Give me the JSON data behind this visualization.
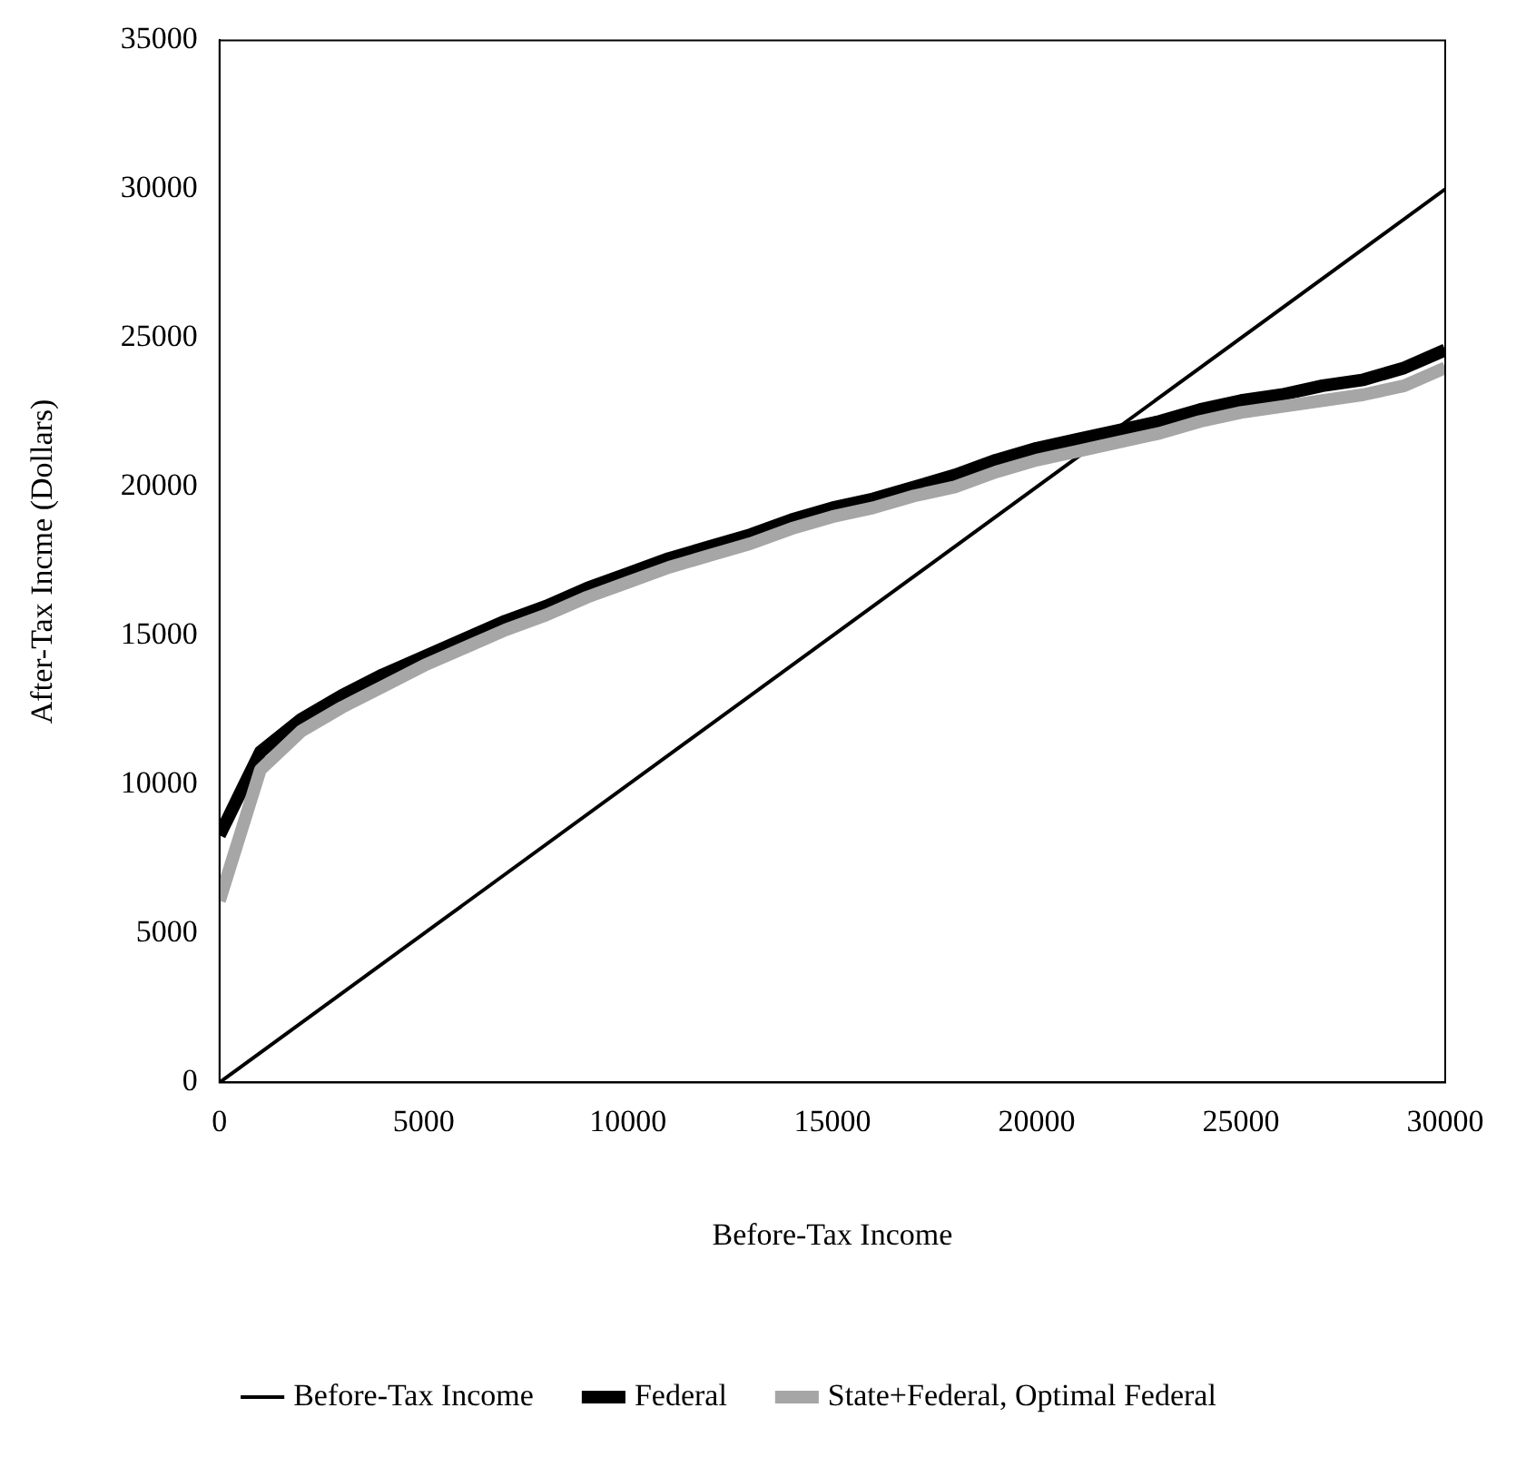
{
  "chart_data": {
    "type": "line",
    "xlabel": "Before-Tax Income",
    "ylabel": "After-Tax Incme (Dollars)",
    "xlim": [
      0,
      30000
    ],
    "xticks": [
      0,
      5000,
      10000,
      15000,
      20000,
      25000,
      30000
    ],
    "ylim": [
      0,
      35000
    ],
    "yticks": [
      0,
      5000,
      10000,
      15000,
      20000,
      25000,
      30000,
      35000
    ],
    "grid": false,
    "legend": "bottom",
    "marker": "none",
    "line_style": "solid",
    "series": [
      {
        "name": "Before-Tax Income",
        "color": "#000000",
        "x": [
          0,
          30000
        ],
        "values": [
          0,
          30000
        ]
      },
      {
        "name": "Federal",
        "color": "#000000",
        "x": [
          0,
          1000,
          2000,
          3000,
          4000,
          5000,
          6000,
          7000,
          8000,
          9000,
          10000,
          11000,
          12000,
          13000,
          14000,
          15000,
          16000,
          17000,
          18000,
          19000,
          20000,
          21000,
          22000,
          23000,
          24000,
          25000,
          26000,
          27000,
          28000,
          29000,
          30000
        ],
        "values": [
          8300,
          11100,
          12200,
          13000,
          13700,
          14300,
          14900,
          15500,
          16000,
          16600,
          17100,
          17600,
          18000,
          18400,
          18900,
          19300,
          19600,
          20000,
          20400,
          20900,
          21300,
          21600,
          21900,
          22200,
          22600,
          22900,
          23100,
          23400,
          23600,
          24000,
          24600
        ]
      },
      {
        "name": "State+Federal, Optimal Federal",
        "color": "#a6a6a6",
        "x": [
          0,
          1000,
          2000,
          3000,
          4000,
          5000,
          6000,
          7000,
          8000,
          9000,
          10000,
          11000,
          12000,
          13000,
          14000,
          15000,
          16000,
          17000,
          18000,
          19000,
          20000,
          21000,
          22000,
          23000,
          24000,
          25000,
          26000,
          27000,
          28000,
          29000,
          30000
        ],
        "values": [
          6100,
          10500,
          11800,
          12600,
          13300,
          14000,
          14600,
          15200,
          15700,
          16300,
          16800,
          17300,
          17700,
          18100,
          18600,
          19000,
          19300,
          19700,
          20000,
          20500,
          20900,
          21200,
          21500,
          21800,
          22200,
          22500,
          22700,
          22900,
          23100,
          23400,
          24000
        ]
      }
    ]
  }
}
